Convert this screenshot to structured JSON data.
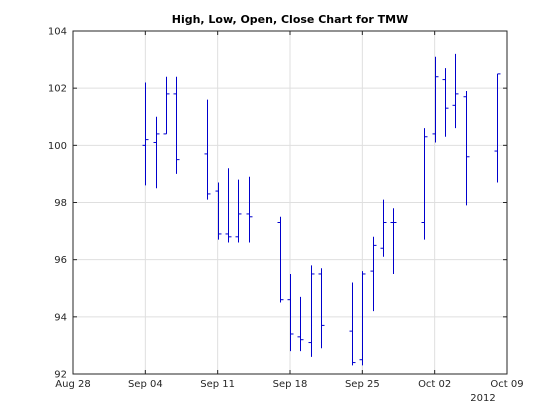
{
  "chart_data": {
    "type": "ohlc",
    "title": "High, Low, Open, Close Chart for TMW",
    "xlabel": "",
    "ylabel": "",
    "ylim": [
      92,
      104
    ],
    "yticks": [
      92,
      94,
      96,
      98,
      100,
      102,
      104
    ],
    "xlim": [
      "2012-08-28",
      "2012-10-09"
    ],
    "xticks": [
      {
        "date": "2012-08-28",
        "label": "Aug 28"
      },
      {
        "date": "2012-09-04",
        "label": "Sep 04"
      },
      {
        "date": "2012-09-11",
        "label": "Sep 11"
      },
      {
        "date": "2012-09-18",
        "label": "Sep 18"
      },
      {
        "date": "2012-09-25",
        "label": "Sep 25"
      },
      {
        "date": "2012-10-02",
        "label": "Oct 02"
      },
      {
        "date": "2012-10-09",
        "label": "Oct 09"
      }
    ],
    "year_label": "2012",
    "grid": true,
    "series_color": "#0000cd",
    "points": [
      {
        "date": "2012-09-04",
        "open": 100.0,
        "high": 102.2,
        "low": 98.6,
        "close": 100.2
      },
      {
        "date": "2012-09-05",
        "open": 100.1,
        "high": 101.0,
        "low": 98.5,
        "close": 100.4
      },
      {
        "date": "2012-09-06",
        "open": 100.4,
        "high": 102.4,
        "low": 100.4,
        "close": 101.8
      },
      {
        "date": "2012-09-07",
        "open": 101.8,
        "high": 102.4,
        "low": 99.0,
        "close": 99.5
      },
      {
        "date": "2012-09-10",
        "open": 99.7,
        "high": 101.6,
        "low": 98.1,
        "close": 98.3
      },
      {
        "date": "2012-09-11",
        "open": 98.4,
        "high": 98.7,
        "low": 96.7,
        "close": 96.9
      },
      {
        "date": "2012-09-12",
        "open": 96.9,
        "high": 99.2,
        "low": 96.6,
        "close": 96.8
      },
      {
        "date": "2012-09-13",
        "open": 96.8,
        "high": 98.8,
        "low": 96.6,
        "close": 97.6
      },
      {
        "date": "2012-09-14",
        "open": 97.6,
        "high": 98.9,
        "low": 96.6,
        "close": 97.5
      },
      {
        "date": "2012-09-17",
        "open": 97.3,
        "high": 97.5,
        "low": 94.5,
        "close": 94.6
      },
      {
        "date": "2012-09-18",
        "open": 94.6,
        "high": 95.5,
        "low": 92.8,
        "close": 93.4
      },
      {
        "date": "2012-09-19",
        "open": 93.3,
        "high": 94.7,
        "low": 92.8,
        "close": 93.2
      },
      {
        "date": "2012-09-20",
        "open": 93.1,
        "high": 95.8,
        "low": 92.6,
        "close": 95.5
      },
      {
        "date": "2012-09-21",
        "open": 95.5,
        "high": 95.7,
        "low": 92.9,
        "close": 93.7
      },
      {
        "date": "2012-09-24",
        "open": 93.5,
        "high": 95.2,
        "low": 92.3,
        "close": 92.4
      },
      {
        "date": "2012-09-25",
        "open": 92.5,
        "high": 95.6,
        "low": 92.3,
        "close": 95.5
      },
      {
        "date": "2012-09-26",
        "open": 95.6,
        "high": 96.8,
        "low": 94.2,
        "close": 96.5
      },
      {
        "date": "2012-09-27",
        "open": 96.4,
        "high": 98.1,
        "low": 96.1,
        "close": 97.3
      },
      {
        "date": "2012-09-28",
        "open": 97.3,
        "high": 97.8,
        "low": 95.5,
        "close": 97.3
      },
      {
        "date": "2012-10-01",
        "open": 97.3,
        "high": 100.6,
        "low": 96.7,
        "close": 100.3
      },
      {
        "date": "2012-10-02",
        "open": 100.4,
        "high": 103.1,
        "low": 100.1,
        "close": 102.4
      },
      {
        "date": "2012-10-03",
        "open": 102.3,
        "high": 102.7,
        "low": 100.3,
        "close": 101.3
      },
      {
        "date": "2012-10-04",
        "open": 101.4,
        "high": 103.2,
        "low": 100.6,
        "close": 101.8
      },
      {
        "date": "2012-10-05",
        "open": 101.7,
        "high": 101.9,
        "low": 97.9,
        "close": 99.6
      },
      {
        "date": "2012-10-08",
        "open": 99.8,
        "high": 102.5,
        "low": 98.7,
        "close": 102.5
      }
    ]
  }
}
